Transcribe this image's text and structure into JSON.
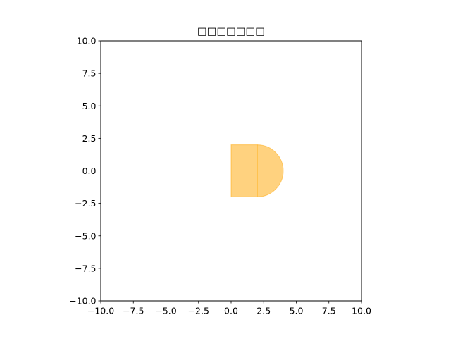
{
  "chart_data": {
    "type": "area",
    "title": "□□□□□□□",
    "xlabel": "",
    "ylabel": "",
    "xlim": [
      -10,
      10
    ],
    "ylim": [
      -10,
      10
    ],
    "aspect": "equal",
    "grid": false,
    "legend": "none",
    "x_ticks": [
      -10,
      -7.5,
      -5,
      -2.5,
      0,
      2.5,
      5,
      7.5,
      10
    ],
    "x_tick_labels": [
      "−10.0",
      "−7.5",
      "−5.0",
      "−2.5",
      "0.0",
      "2.5",
      "5.0",
      "7.5",
      "10.0"
    ],
    "y_ticks": [
      10,
      7.5,
      5,
      2.5,
      0,
      -2.5,
      -5,
      -7.5,
      -10
    ],
    "y_tick_labels": [
      "10.0",
      "7.5",
      "5.0",
      "2.5",
      "0.0",
      "−2.5",
      "−5.0",
      "−7.5",
      "−10.0"
    ],
    "shapes": [
      {
        "kind": "rectangle",
        "x_range": [
          0,
          2
        ],
        "y_range": [
          -2,
          2
        ],
        "fill_color": "#ffa500",
        "alpha": 0.5
      },
      {
        "kind": "half-disk",
        "center": [
          2,
          0
        ],
        "radius": 2,
        "side": "right",
        "fill_color": "#ffa500",
        "alpha": 0.5
      }
    ]
  }
}
